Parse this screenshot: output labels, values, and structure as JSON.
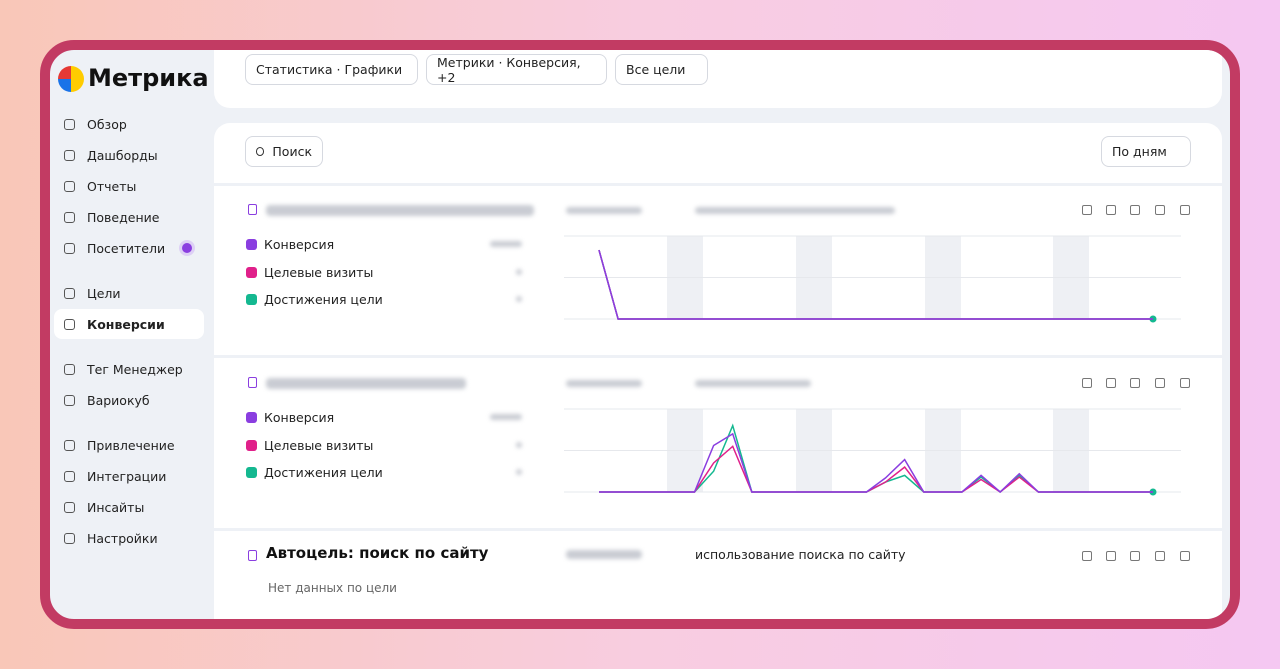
{
  "logo": "Метрика",
  "sidebar": {
    "groups": [
      [
        {
          "label": "Обзор"
        },
        {
          "label": "Дашборды"
        },
        {
          "label": "Отчеты"
        },
        {
          "label": "Поведение"
        },
        {
          "label": "Посетители",
          "badge": true
        }
      ],
      [
        {
          "label": "Цели"
        },
        {
          "label": "Конверсии",
          "active": true
        }
      ],
      [
        {
          "label": "Тег Менеджер"
        },
        {
          "label": "Вариокуб"
        }
      ],
      [
        {
          "label": "Привлечение"
        },
        {
          "label": "Интеграции"
        },
        {
          "label": "Инсайты"
        },
        {
          "label": "Настройки"
        }
      ]
    ]
  },
  "toolbar": {
    "filters": [
      "Статистика · Графики",
      "Метрики · Конверсия, +2",
      "Все цели"
    ],
    "search": "Поиск",
    "period": "По дням"
  },
  "goals": [
    {
      "legend": [
        {
          "name": "Конверсия",
          "color": "#8a3ee0"
        },
        {
          "name": "Целевые визиты",
          "color": "#e0208a"
        },
        {
          "name": "Достижения цели",
          "color": "#14b890"
        }
      ],
      "chart_data": {
        "type": "line",
        "ylim": [
          0,
          1
        ],
        "series": [
          {
            "name": "Конверсия",
            "color": "#8a3ee0",
            "values": [
              0.83,
              0,
              0,
              0,
              0,
              0,
              0,
              0,
              0,
              0,
              0,
              0,
              0,
              0,
              0,
              0,
              0,
              0,
              0,
              0,
              0,
              0,
              0,
              0,
              0,
              0,
              0,
              0,
              0,
              0
            ]
          },
          {
            "name": "Целевые визиты",
            "color": "#e0208a",
            "values": [
              0.83,
              0,
              0,
              0,
              0,
              0,
              0,
              0,
              0,
              0,
              0,
              0,
              0,
              0,
              0,
              0,
              0,
              0,
              0,
              0,
              0,
              0,
              0,
              0,
              0,
              0,
              0,
              0,
              0,
              0
            ]
          },
          {
            "name": "Достижения цели",
            "color": "#14b890",
            "values": [
              0.83,
              0,
              0,
              0,
              0,
              0,
              0,
              0,
              0,
              0,
              0,
              0,
              0,
              0,
              0,
              0,
              0,
              0,
              0,
              0,
              0,
              0,
              0,
              0,
              0,
              0,
              0,
              0,
              0,
              0
            ]
          }
        ]
      }
    },
    {
      "legend": [
        {
          "name": "Конверсия",
          "color": "#8a3ee0"
        },
        {
          "name": "Целевые визиты",
          "color": "#e0208a"
        },
        {
          "name": "Достижения цели",
          "color": "#14b890"
        }
      ],
      "chart_data": {
        "type": "line",
        "ylim": [
          0,
          1
        ],
        "series": [
          {
            "name": "Конверсия",
            "color": "#8a3ee0",
            "values": [
              0,
              0,
              0,
              0,
              0,
              0,
              0.56,
              0.7,
              0,
              0,
              0,
              0,
              0,
              0,
              0,
              0.17,
              0.39,
              0,
              0,
              0,
              0.2,
              0,
              0.22,
              0,
              0,
              0,
              0,
              0,
              0,
              0
            ]
          },
          {
            "name": "Целевые визиты",
            "color": "#e0208a",
            "values": [
              0,
              0,
              0,
              0,
              0,
              0,
              0.35,
              0.55,
              0,
              0,
              0,
              0,
              0,
              0,
              0,
              0.12,
              0.3,
              0,
              0,
              0,
              0.15,
              0,
              0.18,
              0,
              0,
              0,
              0,
              0,
              0,
              0
            ]
          },
          {
            "name": "Достижения цели",
            "color": "#14b890",
            "values": [
              0,
              0,
              0,
              0,
              0,
              0,
              0.25,
              0.8,
              0,
              0,
              0,
              0,
              0,
              0,
              0,
              0.12,
              0.2,
              0,
              0,
              0,
              0.18,
              0,
              0.2,
              0,
              0,
              0,
              0,
              0,
              0,
              0
            ]
          }
        ]
      }
    },
    {
      "title": "Автоцель: поиск по сайту",
      "description": "использование поиска по сайту",
      "empty": "Нет данных по цели"
    }
  ]
}
